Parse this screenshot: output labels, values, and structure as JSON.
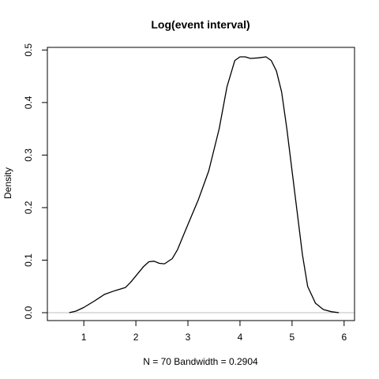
{
  "chart_data": {
    "type": "line",
    "title": "Log(event interval)",
    "xlabel": "N = 70   Bandwidth = 0.2904",
    "ylabel": "Density",
    "xlim": [
      0.3,
      6.2
    ],
    "ylim": [
      -0.015,
      0.505
    ],
    "xticks": [
      1,
      2,
      3,
      4,
      5,
      6
    ],
    "yticks": [
      0.0,
      0.1,
      0.2,
      0.3,
      0.4,
      0.5
    ],
    "xtick_labels": [
      "1",
      "2",
      "3",
      "4",
      "5",
      "6"
    ],
    "ytick_labels": [
      "0.0",
      "0.1",
      "0.2",
      "0.3",
      "0.4",
      "0.5"
    ],
    "baseline": 0,
    "colors": {
      "line": "#000000",
      "baseline": "#bebebe",
      "box": "#000000"
    },
    "series": [
      {
        "x": [
          0.72,
          0.85,
          1.0,
          1.2,
          1.4,
          1.6,
          1.8,
          1.9,
          2.0,
          2.15,
          2.25,
          2.35,
          2.45,
          2.55,
          2.7,
          2.8,
          3.0,
          3.2,
          3.4,
          3.6,
          3.75,
          3.9,
          4.0,
          4.1,
          4.2,
          4.35,
          4.5,
          4.6,
          4.7,
          4.8,
          4.9,
          5.0,
          5.1,
          5.2,
          5.3,
          5.45,
          5.6,
          5.75,
          5.9
        ],
        "y": [
          0.0,
          0.003,
          0.01,
          0.022,
          0.035,
          0.042,
          0.048,
          0.058,
          0.07,
          0.088,
          0.097,
          0.098,
          0.094,
          0.093,
          0.103,
          0.12,
          0.168,
          0.215,
          0.27,
          0.35,
          0.43,
          0.48,
          0.487,
          0.487,
          0.484,
          0.485,
          0.487,
          0.48,
          0.46,
          0.42,
          0.35,
          0.27,
          0.19,
          0.11,
          0.05,
          0.018,
          0.006,
          0.002,
          0.0
        ]
      }
    ]
  }
}
